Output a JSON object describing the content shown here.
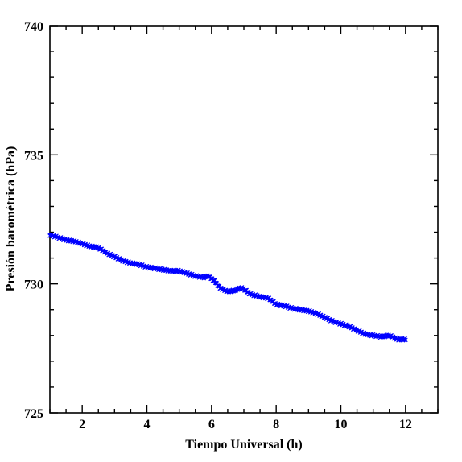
{
  "chart_data": {
    "type": "scatter",
    "title": "",
    "xlabel": "Tiempo Universal (h)",
    "ylabel": "Presión barométrica (hPa)",
    "xlim": [
      1,
      13
    ],
    "ylim": [
      725,
      740
    ],
    "x_ticks": [
      2,
      4,
      6,
      8,
      10,
      12
    ],
    "y_ticks": [
      725,
      730,
      735,
      740
    ],
    "x_tick_labels": [
      "2",
      "4",
      "6",
      "8",
      "10",
      "12"
    ],
    "y_tick_labels": [
      "725",
      "730",
      "735",
      "740"
    ],
    "marker": "x",
    "series": [
      {
        "color": "#0000ff",
        "x": [
          1.0,
          1.25,
          1.5,
          1.75,
          2.0,
          2.25,
          2.5,
          2.75,
          3.0,
          3.25,
          3.5,
          3.75,
          4.0,
          4.25,
          4.5,
          4.75,
          5.0,
          5.25,
          5.5,
          5.75,
          5.9,
          6.1,
          6.25,
          6.5,
          6.75,
          6.9,
          7.0,
          7.2,
          7.5,
          7.75,
          8.0,
          8.25,
          8.5,
          8.75,
          9.0,
          9.25,
          9.5,
          9.75,
          10.0,
          10.25,
          10.5,
          10.75,
          11.0,
          11.25,
          11.5,
          11.75,
          12.0
        ],
        "y": [
          731.9,
          731.8,
          731.7,
          731.65,
          731.55,
          731.45,
          731.4,
          731.2,
          731.05,
          730.9,
          730.8,
          730.75,
          730.65,
          730.6,
          730.55,
          730.5,
          730.5,
          730.4,
          730.3,
          730.25,
          730.3,
          730.1,
          729.85,
          729.7,
          729.75,
          729.85,
          729.8,
          729.6,
          729.5,
          729.45,
          729.2,
          729.15,
          729.05,
          729.0,
          728.95,
          728.85,
          728.7,
          728.55,
          728.45,
          728.35,
          728.2,
          728.05,
          728.0,
          727.95,
          728.0,
          727.85,
          727.85
        ]
      }
    ]
  }
}
